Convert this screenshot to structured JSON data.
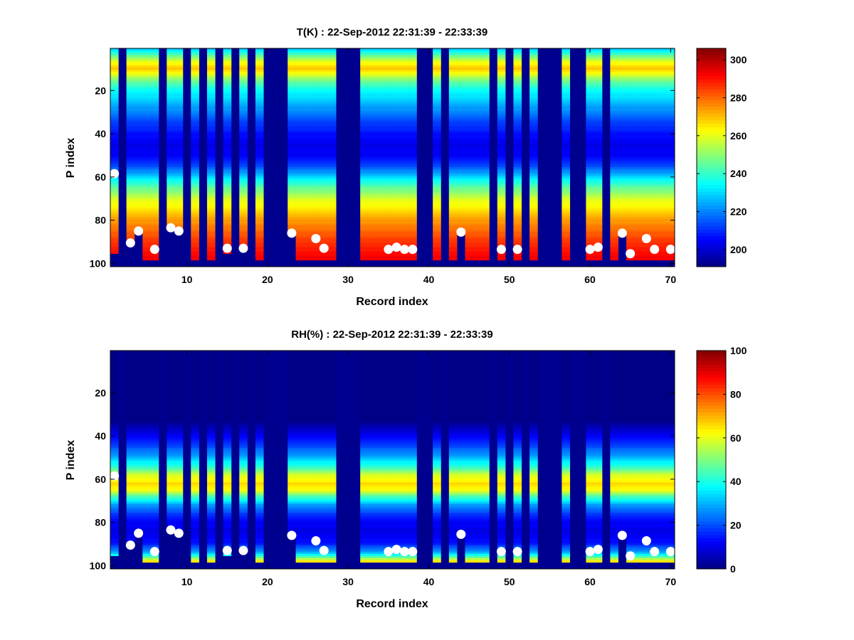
{
  "chart_data": [
    {
      "type": "heatmap",
      "title": "T(K) : 22-Sep-2012 22:31:39 - 22:33:39",
      "xlabel": "Record index",
      "ylabel": "P index",
      "xlim": [
        0.5,
        70.5
      ],
      "ylim": [
        0.5,
        101.5
      ],
      "y_reversed": true,
      "xticks": [
        10,
        20,
        30,
        40,
        50,
        60,
        70
      ],
      "yticks": [
        20,
        40,
        60,
        80,
        100
      ],
      "colormap": "jet",
      "clim": [
        191,
        306
      ],
      "colorbar_ticks": [
        200,
        220,
        240,
        260,
        280,
        300
      ],
      "profile_levels": [
        1,
        4,
        7,
        10,
        13,
        16,
        20,
        25,
        30,
        35,
        40,
        45,
        50,
        55,
        60,
        65,
        70,
        75,
        80,
        85,
        90,
        95,
        98
      ],
      "profile_values": [
        230,
        245,
        262,
        270,
        258,
        245,
        235,
        228,
        220,
        212,
        207,
        203,
        205,
        213,
        230,
        245,
        258,
        266,
        274,
        280,
        286,
        290,
        293
      ],
      "missing_color": "#00008f"
    },
    {
      "type": "heatmap",
      "title": "RH(%) : 22-Sep-2012 22:31:39 - 22:33:39",
      "xlabel": "Record index",
      "ylabel": "P index",
      "xlim": [
        0.5,
        70.5
      ],
      "ylim": [
        0.5,
        101.5
      ],
      "y_reversed": true,
      "xticks": [
        10,
        20,
        30,
        40,
        50,
        60,
        70
      ],
      "yticks": [
        20,
        40,
        60,
        80,
        100
      ],
      "colormap": "jet",
      "clim": [
        0,
        100
      ],
      "colorbar_ticks": [
        0,
        20,
        40,
        60,
        80,
        100
      ],
      "profile_levels": [
        1,
        33,
        36,
        40,
        45,
        50,
        55,
        58,
        62,
        65,
        68,
        72,
        76,
        80,
        85,
        90,
        94,
        97,
        98
      ],
      "profile_values": [
        0,
        0,
        5,
        12,
        20,
        30,
        45,
        58,
        66,
        62,
        45,
        28,
        18,
        12,
        10,
        15,
        30,
        55,
        65
      ],
      "missing_color": "#00008f"
    }
  ],
  "records": {
    "valid": [
      1,
      3,
      4,
      5,
      6,
      8,
      9,
      11,
      13,
      15,
      17,
      19,
      23,
      24,
      25,
      26,
      27,
      28,
      32,
      33,
      34,
      35,
      36,
      37,
      38,
      41,
      43,
      44,
      45,
      46,
      47,
      49,
      51,
      53,
      57,
      60,
      61,
      63,
      64,
      65,
      66,
      67,
      68,
      69,
      70
    ],
    "bottom_level": {
      "1": 95,
      "3": 90,
      "4": 85,
      "8": 83,
      "9": 85,
      "15": 95,
      "17": 93,
      "23": 86,
      "44": 85,
      "64": 86
    },
    "default_bottom_level": 98
  },
  "surface_markers": [
    [
      1,
      58.5
    ],
    [
      3,
      90.5
    ],
    [
      4,
      85
    ],
    [
      6,
      93.5
    ],
    [
      8,
      83.5
    ],
    [
      9,
      85
    ],
    [
      15,
      93
    ],
    [
      17,
      93
    ],
    [
      23,
      86
    ],
    [
      26,
      88.5
    ],
    [
      27,
      93
    ],
    [
      35,
      93.5
    ],
    [
      36,
      92.5
    ],
    [
      37,
      93.5
    ],
    [
      38,
      93.5
    ],
    [
      44,
      85.5
    ],
    [
      49,
      93.5
    ],
    [
      51,
      93.5
    ],
    [
      60,
      93.5
    ],
    [
      61,
      92.5
    ],
    [
      64,
      86
    ],
    [
      65,
      95.5
    ],
    [
      67,
      88.5
    ],
    [
      68,
      93.5
    ],
    [
      70,
      93.5
    ]
  ]
}
